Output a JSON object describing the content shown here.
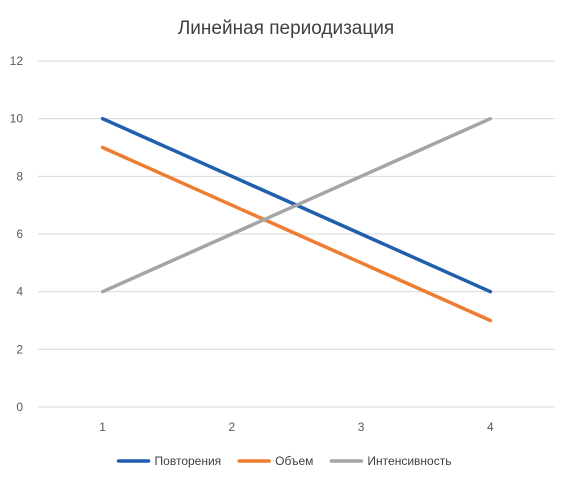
{
  "chart_data": {
    "type": "line",
    "title": "Линейная периодизация",
    "xlabel": "",
    "ylabel": "",
    "categories": [
      "1",
      "2",
      "3",
      "4"
    ],
    "ylim": [
      0,
      12
    ],
    "yticks": [
      0,
      2,
      4,
      6,
      8,
      10,
      12
    ],
    "grid": true,
    "legend_position": "bottom",
    "series": [
      {
        "name": "Повторения",
        "values": [
          10,
          8,
          6,
          4
        ],
        "color": "#1f5fad"
      },
      {
        "name": "Объем",
        "values": [
          9,
          7,
          5,
          3
        ],
        "color": "#ee7d31"
      },
      {
        "name": "Интенсивность",
        "values": [
          4,
          6,
          8,
          10
        ],
        "color": "#a5a5a5"
      }
    ]
  }
}
